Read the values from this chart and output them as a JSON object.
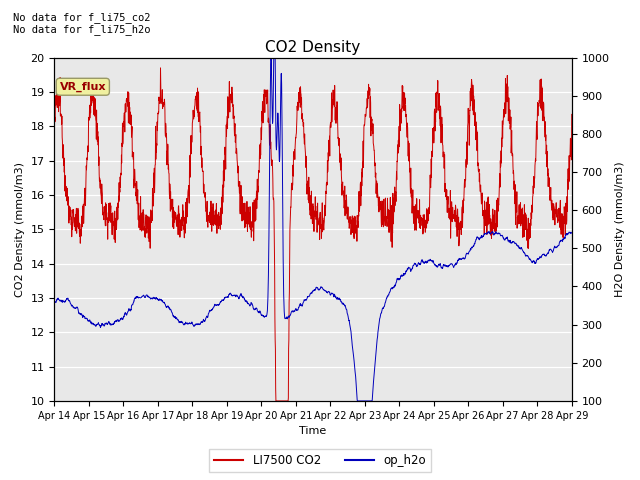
{
  "title": "CO2 Density",
  "xlabel": "Time",
  "ylabel_left": "CO2 Density (mmol/m3)",
  "ylabel_right": "H2O Density (mmol/m3)",
  "ylim_left": [
    10.0,
    20.0
  ],
  "ylim_right": [
    100,
    1000
  ],
  "yticks_left": [
    10.0,
    11.0,
    12.0,
    13.0,
    14.0,
    15.0,
    16.0,
    17.0,
    18.0,
    19.0,
    20.0
  ],
  "yticks_right": [
    100,
    200,
    300,
    400,
    500,
    600,
    700,
    800,
    900,
    1000
  ],
  "background_color": "#e8e8e8",
  "fig_background": "#ffffff",
  "line_co2_color": "#cc0000",
  "line_h2o_color": "#0000bb",
  "legend_co2": "LI7500 CO2",
  "legend_h2o": "op_h2o",
  "annotation1": "No data for f_li75_co2",
  "annotation2": "No data for f_li75_h2o",
  "vr_flux_label": "VR_flux",
  "vr_flux_text_color": "#990000",
  "xticklabels": [
    "Apr 14",
    "Apr 15",
    "Apr 16",
    "Apr 17",
    "Apr 18",
    "Apr 19",
    "Apr 20",
    "Apr 21",
    "Apr 22",
    "Apr 23",
    "Apr 24",
    "Apr 25",
    "Apr 26",
    "Apr 27",
    "Apr 28",
    "Apr 29"
  ],
  "n_days": 15,
  "n_points": 2000
}
